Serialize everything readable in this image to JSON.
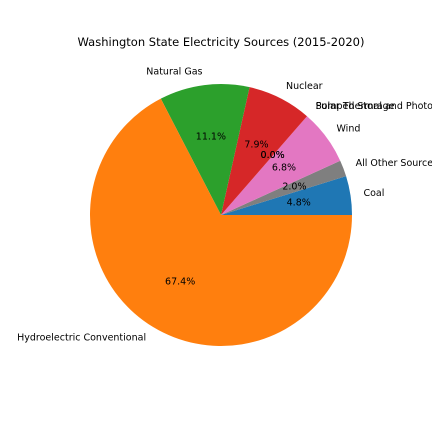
{
  "chart_data": {
    "type": "pie",
    "title": "Washington State Electricity Sources (2015-2020)",
    "slices": [
      {
        "label": "Coal",
        "value": 4.8,
        "pct_label": "4.8%",
        "color": "#1f77b4"
      },
      {
        "label": "All Other Sources",
        "value": 2.0,
        "pct_label": "2.0%",
        "color": "#7f7f7f"
      },
      {
        "label": "Wind",
        "value": 6.8,
        "pct_label": "6.8%",
        "color": "#e377c2"
      },
      {
        "label": "Pumped Storage",
        "value": 0.0,
        "pct_label": "0.0%",
        "color": "#bcbd22"
      },
      {
        "label": "Solar Thermal and Photovoltaic",
        "value": 0.0,
        "pct_label": "0.0%",
        "color": "#17becf"
      },
      {
        "label": "Nuclear",
        "value": 7.9,
        "pct_label": "7.9%",
        "color": "#d62728"
      },
      {
        "label": "Natural Gas",
        "value": 11.1,
        "pct_label": "11.1%",
        "color": "#2ca02c"
      },
      {
        "label": "Hydroelectric Conventional",
        "value": 67.4,
        "pct_label": "67.4%",
        "color": "#ff7f0e"
      }
    ],
    "start_angle": 0,
    "direction": "counterclockwise"
  }
}
